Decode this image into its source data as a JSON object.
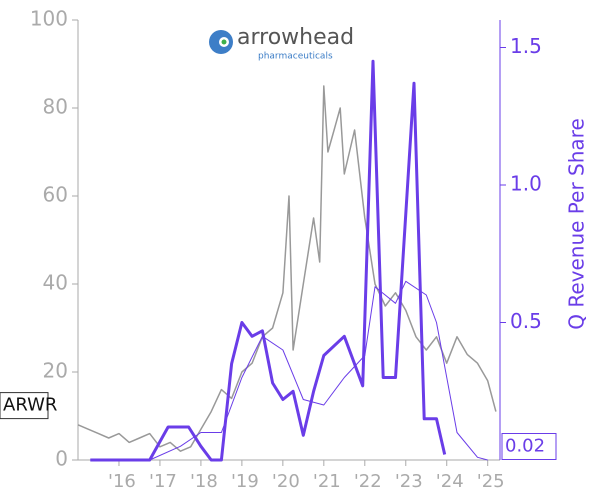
{
  "chart_data": {
    "type": "line",
    "logo": {
      "name": "arrowhead",
      "tagline": "pharmaceuticals"
    },
    "y2label": "Q Revenue Per Share",
    "xlim": [
      2015,
      2025.3
    ],
    "xticks": [
      {
        "value": 2016,
        "label": "'16"
      },
      {
        "value": 2017,
        "label": "'17"
      },
      {
        "value": 2018,
        "label": "'18"
      },
      {
        "value": 2019,
        "label": "'19"
      },
      {
        "value": 2020,
        "label": "'20"
      },
      {
        "value": 2021,
        "label": "'21"
      },
      {
        "value": 2022,
        "label": "'22"
      },
      {
        "value": 2023,
        "label": "'23"
      },
      {
        "value": 2024,
        "label": "'24"
      },
      {
        "value": 2025,
        "label": "'25"
      }
    ],
    "ylim": [
      0,
      100
    ],
    "yticks": [
      0,
      20,
      40,
      60,
      80,
      100
    ],
    "y2lim": [
      0,
      1.6
    ],
    "y2ticks": [
      0.5,
      {
        "value": 1,
        "label": "1.0"
      },
      1.5
    ],
    "series": [
      {
        "name": "ARWR",
        "color": "#999999",
        "x": [
          2015,
          2015.25,
          2015.5,
          2015.75,
          2016,
          2016.25,
          2016.5,
          2016.75,
          2017,
          2017.25,
          2017.5,
          2017.75,
          2018,
          2018.25,
          2018.5,
          2018.75,
          2019,
          2019.25,
          2019.5,
          2019.75,
          2020,
          2020.15,
          2020.25,
          2020.5,
          2020.75,
          2020.9,
          2021,
          2021.1,
          2021.25,
          2021.4,
          2021.5,
          2021.75,
          2022,
          2022.25,
          2022.5,
          2022.75,
          2023,
          2023.25,
          2023.5,
          2023.75,
          2024,
          2024.25,
          2024.5,
          2024.75,
          2025,
          2025.2
        ],
        "values": [
          8,
          7,
          6,
          5,
          6,
          4,
          5,
          6,
          3,
          4,
          2,
          3,
          7,
          11,
          16,
          14,
          20,
          22,
          28,
          30,
          38,
          60,
          25,
          40,
          55,
          45,
          85,
          70,
          75,
          80,
          65,
          75,
          55,
          40,
          35,
          38,
          34,
          28,
          25,
          28,
          22,
          28,
          24,
          22,
          18,
          11
        ]
      },
      {
        "color": "#6a3de8",
        "axis": "y2",
        "x": [
          2015.3,
          2016.75,
          2017.2,
          2017.7,
          2018,
          2018.25,
          2018.5,
          2018.75,
          2019,
          2019.25,
          2019.5,
          2019.75,
          2020,
          2020.25,
          2020.5,
          2020.75,
          2021,
          2021.5,
          2021.95,
          2022.2,
          2022.45,
          2022.75,
          2023.2,
          2023.45,
          2023.75,
          2023.95
        ],
        "values": [
          0,
          0,
          0.12,
          0.12,
          0.05,
          0,
          0,
          0.35,
          0.5,
          0.45,
          0.47,
          0.28,
          0.22,
          0.25,
          0.09,
          0.25,
          0.38,
          0.45,
          0.27,
          1.45,
          0.3,
          0.3,
          1.37,
          0.15,
          0.15,
          0.02
        ]
      },
      {
        "color": "#6a3de8",
        "axis": "y2",
        "x": [
          2015.3,
          2016.75,
          2017.5,
          2018,
          2018.5,
          2019,
          2019.5,
          2020,
          2020.5,
          2021,
          2021.5,
          2022,
          2022.25,
          2022.75,
          2023,
          2023.5,
          2023.75,
          2024.25,
          2024.75,
          2025
        ],
        "values": [
          0,
          0,
          0.05,
          0.1,
          0.1,
          0.3,
          0.45,
          0.4,
          0.22,
          0.2,
          0.3,
          0.38,
          0.63,
          0.57,
          0.65,
          0.6,
          0.5,
          0.1,
          0.01,
          0
        ]
      }
    ]
  }
}
